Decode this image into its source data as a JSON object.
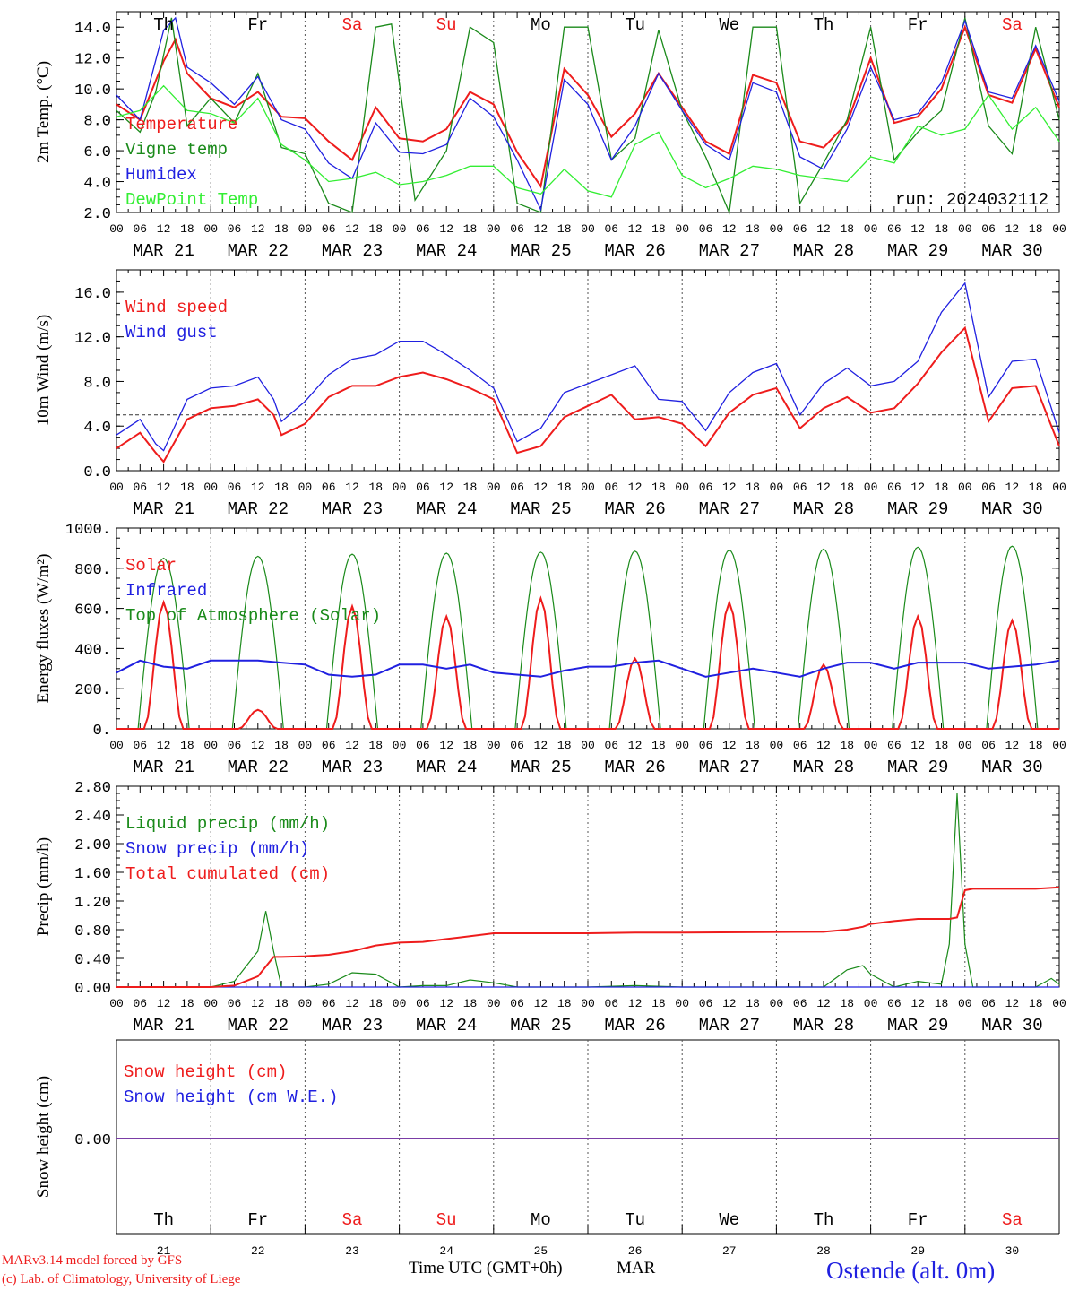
{
  "footer": {
    "credit_line1": "MARv3.14 model forced by GFS",
    "credit_line2": "(c) Lab. of Climatology, University of Liege",
    "xaxis_title": "Time UTC (GMT+0h)",
    "month": "MAR",
    "station": "Ostende (alt. 0m)"
  },
  "colors": {
    "red": "#ee1c1c",
    "green": "#1a8a1a",
    "blue": "#2020e0",
    "light_green": "#33ee33",
    "purple": "#7a3ca6",
    "black": "#000000"
  },
  "chart_data": [
    {
      "id": "temperature",
      "type": "line",
      "ylabel": "2m Temp. (°C)",
      "ylim": [
        2.0,
        15.0
      ],
      "yticks": [
        "2.0",
        "4.0",
        "6.0",
        "8.0",
        "10.0",
        "12.0",
        "14.0"
      ],
      "annotation": "run: 2024032112",
      "hour_ticks": [
        "00",
        "06",
        "12",
        "18"
      ],
      "dates": [
        "MAR 21",
        "MAR 22",
        "MAR 23",
        "MAR 24",
        "MAR 25",
        "MAR 26",
        "MAR 27",
        "MAR 28",
        "MAR 29",
        "MAR 30"
      ],
      "weekdays": [
        "Th",
        "Fr",
        "Sa",
        "Su",
        "Mo",
        "Tu",
        "We",
        "Th",
        "Fr",
        "Sa"
      ],
      "weekend": [
        false,
        false,
        true,
        true,
        false,
        false,
        false,
        false,
        false,
        true
      ],
      "x_unit": "hours after 2024-03-21 00 UTC",
      "xlim": [
        0,
        240
      ],
      "series": [
        {
          "name": "Temperature",
          "color": "red",
          "x": [
            0,
            6,
            12,
            15,
            18,
            24,
            30,
            36,
            42,
            48,
            54,
            60,
            66,
            72,
            78,
            84,
            90,
            96,
            102,
            108,
            114,
            120,
            126,
            132,
            138,
            144,
            150,
            156,
            162,
            168,
            174,
            180,
            186,
            192,
            198,
            204,
            210,
            216,
            222,
            228,
            234,
            240
          ],
          "values": [
            9.0,
            8.0,
            11.8,
            13.2,
            11.0,
            9.4,
            8.8,
            9.8,
            8.2,
            8.1,
            6.6,
            5.4,
            8.8,
            6.8,
            6.6,
            7.4,
            9.8,
            9.0,
            5.9,
            3.7,
            11.3,
            9.6,
            6.9,
            8.4,
            11.0,
            8.8,
            6.6,
            5.8,
            10.9,
            10.4,
            6.6,
            6.2,
            7.8,
            12.0,
            7.8,
            8.2,
            10.0,
            14.0,
            9.6,
            9.1,
            12.6,
            8.8
          ]
        },
        {
          "name": "Vigne temp",
          "color": "green",
          "x": [
            0,
            6,
            10,
            14,
            18,
            24,
            30,
            36,
            42,
            48,
            54,
            60,
            66,
            70,
            76,
            84,
            90,
            96,
            102,
            108,
            114,
            120,
            126,
            132,
            138,
            144,
            150,
            156,
            162,
            168,
            174,
            180,
            186,
            192,
            198,
            204,
            210,
            216,
            222,
            228,
            234,
            240
          ],
          "values": [
            8.6,
            7.2,
            9.8,
            14.6,
            7.6,
            9.4,
            7.8,
            11.0,
            6.2,
            5.8,
            2.6,
            2.0,
            14.0,
            14.2,
            2.8,
            6.0,
            14.0,
            13.0,
            2.6,
            2.0,
            14.0,
            14.0,
            5.4,
            6.8,
            13.8,
            8.6,
            5.6,
            2.0,
            14.0,
            14.0,
            2.6,
            5.2,
            8.0,
            14.0,
            5.4,
            7.2,
            8.6,
            14.6,
            7.6,
            5.8,
            14.0,
            8.0
          ]
        },
        {
          "name": "Humidex",
          "color": "blue",
          "x": [
            0,
            6,
            12,
            15,
            18,
            24,
            30,
            36,
            42,
            48,
            54,
            60,
            66,
            72,
            78,
            84,
            90,
            96,
            102,
            108,
            114,
            120,
            126,
            132,
            138,
            144,
            150,
            156,
            162,
            168,
            174,
            180,
            186,
            192,
            198,
            204,
            210,
            216,
            222,
            228,
            234,
            240
          ],
          "values": [
            9.6,
            8.0,
            13.8,
            14.6,
            11.4,
            10.4,
            9.0,
            10.8,
            8.0,
            7.4,
            5.2,
            4.2,
            7.8,
            5.9,
            5.8,
            6.4,
            9.4,
            8.2,
            5.4,
            2.2,
            10.6,
            9.0,
            5.4,
            7.6,
            11.0,
            8.6,
            6.4,
            5.4,
            10.4,
            9.8,
            5.6,
            4.8,
            7.4,
            11.4,
            8.0,
            8.4,
            10.4,
            14.4,
            9.8,
            9.4,
            12.8,
            9.2
          ]
        },
        {
          "name": "DewPoint Temp",
          "color": "light_green",
          "x": [
            0,
            6,
            12,
            18,
            24,
            30,
            36,
            42,
            48,
            54,
            60,
            66,
            72,
            78,
            84,
            90,
            96,
            102,
            108,
            114,
            120,
            126,
            132,
            138,
            144,
            150,
            156,
            162,
            168,
            174,
            180,
            186,
            192,
            198,
            204,
            210,
            216,
            222,
            228,
            234,
            240
          ],
          "values": [
            8.2,
            8.6,
            10.2,
            8.6,
            8.4,
            7.8,
            9.4,
            6.4,
            5.4,
            4.0,
            4.2,
            4.6,
            3.8,
            4.0,
            4.4,
            5.0,
            5.0,
            3.6,
            3.2,
            4.8,
            3.4,
            3.0,
            6.4,
            7.2,
            4.4,
            3.6,
            4.2,
            5.0,
            4.8,
            4.4,
            4.2,
            4.0,
            5.6,
            5.2,
            7.6,
            7.0,
            7.4,
            9.6,
            7.4,
            8.8,
            6.6
          ]
        }
      ]
    },
    {
      "id": "wind",
      "type": "line",
      "ylabel": "10m Wind (m/s)",
      "ylim": [
        0.0,
        18.0
      ],
      "yticks": [
        "0.0",
        "4.0",
        "8.0",
        "12.0",
        "16.0"
      ],
      "reference_line": 5.0,
      "hour_ticks": [
        "00",
        "06",
        "12",
        "18"
      ],
      "dates": [
        "MAR 21",
        "MAR 22",
        "MAR 23",
        "MAR 24",
        "MAR 25",
        "MAR 26",
        "MAR 27",
        "MAR 28",
        "MAR 29",
        "MAR 30"
      ],
      "x_unit": "hours after 2024-03-21 00 UTC",
      "xlim": [
        0,
        240
      ],
      "series": [
        {
          "name": "Wind speed",
          "color": "red",
          "x": [
            0,
            6,
            10,
            12,
            18,
            24,
            30,
            36,
            40,
            42,
            48,
            54,
            60,
            66,
            72,
            78,
            84,
            90,
            96,
            102,
            108,
            114,
            120,
            126,
            132,
            138,
            144,
            150,
            156,
            162,
            168,
            174,
            180,
            186,
            192,
            198,
            204,
            210,
            216,
            222,
            228,
            234,
            240
          ],
          "values": [
            2.0,
            3.4,
            1.6,
            0.8,
            4.6,
            5.6,
            5.8,
            6.4,
            5.0,
            3.2,
            4.2,
            6.6,
            7.6,
            7.6,
            8.4,
            8.8,
            8.2,
            7.4,
            6.4,
            1.6,
            2.2,
            4.8,
            5.8,
            6.8,
            4.6,
            4.8,
            4.2,
            2.2,
            5.2,
            6.8,
            7.4,
            3.8,
            5.6,
            6.6,
            5.2,
            5.6,
            7.8,
            10.6,
            12.8,
            4.4,
            7.4,
            7.6,
            2.2
          ]
        },
        {
          "name": "Wind gust",
          "color": "blue",
          "x": [
            0,
            6,
            10,
            12,
            18,
            24,
            30,
            36,
            40,
            42,
            48,
            54,
            60,
            66,
            72,
            78,
            84,
            90,
            96,
            102,
            108,
            114,
            120,
            126,
            132,
            138,
            144,
            150,
            156,
            162,
            168,
            174,
            180,
            186,
            192,
            198,
            204,
            210,
            216,
            222,
            228,
            234,
            240
          ],
          "values": [
            3.2,
            4.6,
            2.4,
            1.8,
            6.4,
            7.4,
            7.6,
            8.4,
            6.4,
            4.4,
            6.2,
            8.6,
            10.0,
            10.4,
            11.6,
            11.6,
            10.4,
            9.0,
            7.4,
            2.6,
            3.8,
            7.0,
            7.8,
            8.6,
            9.4,
            6.4,
            6.2,
            3.6,
            7.0,
            8.8,
            9.6,
            5.0,
            7.8,
            9.2,
            7.6,
            8.0,
            9.8,
            14.2,
            16.8,
            6.6,
            9.8,
            10.0,
            3.4
          ]
        }
      ]
    },
    {
      "id": "energy",
      "type": "line",
      "ylabel": "Energy fluxes (W/m²)",
      "ylim": [
        0,
        1000
      ],
      "yticks": [
        "0.",
        "200.",
        "400.",
        "600.",
        "800.",
        "1000."
      ],
      "hour_ticks": [
        "00",
        "06",
        "12",
        "18"
      ],
      "dates": [
        "MAR 21",
        "MAR 22",
        "MAR 23",
        "MAR 24",
        "MAR 25",
        "MAR 26",
        "MAR 27",
        "MAR 28",
        "MAR 29",
        "MAR 30"
      ],
      "x_unit": "hours after 2024-03-21 00 UTC",
      "xlim": [
        0,
        240
      ],
      "series": [
        {
          "name": "Solar",
          "color": "red",
          "daily_peaks": [
            630,
            95,
            610,
            560,
            650,
            350,
            630,
            320,
            560,
            540
          ]
        },
        {
          "name": "Infrared",
          "color": "blue",
          "x": [
            0,
            6,
            12,
            18,
            24,
            30,
            36,
            42,
            48,
            54,
            60,
            66,
            72,
            78,
            84,
            90,
            96,
            102,
            108,
            114,
            120,
            126,
            132,
            138,
            144,
            150,
            156,
            162,
            168,
            174,
            180,
            186,
            192,
            198,
            204,
            210,
            216,
            222,
            228,
            234,
            240
          ],
          "values": [
            280,
            340,
            310,
            300,
            340,
            340,
            340,
            330,
            320,
            270,
            260,
            270,
            320,
            320,
            300,
            320,
            280,
            270,
            260,
            290,
            310,
            310,
            330,
            340,
            300,
            260,
            280,
            300,
            280,
            260,
            300,
            330,
            330,
            300,
            330,
            330,
            330,
            300,
            310,
            320,
            340
          ]
        },
        {
          "name": "Top of Atmosphere (Solar)",
          "color": "green",
          "daily_peaks": [
            850,
            860,
            870,
            875,
            880,
            885,
            890,
            895,
            905,
            910
          ]
        }
      ]
    },
    {
      "id": "precip",
      "type": "line",
      "ylabel": "Precip (mm/h)",
      "ylim": [
        0.0,
        2.8
      ],
      "yticks": [
        "0.00",
        "0.40",
        "0.80",
        "1.20",
        "1.60",
        "2.00",
        "2.40",
        "2.80"
      ],
      "hour_ticks": [
        "00",
        "06",
        "12",
        "18"
      ],
      "dates": [
        "MAR 21",
        "MAR 22",
        "MAR 23",
        "MAR 24",
        "MAR 25",
        "MAR 26",
        "MAR 27",
        "MAR 28",
        "MAR 29",
        "MAR 30"
      ],
      "x_unit": "hours after 2024-03-21 00 UTC",
      "xlim": [
        0,
        240
      ],
      "series": [
        {
          "name": "Liquid precip (mm/h)",
          "color": "green",
          "x": [
            0,
            24,
            30,
            36,
            38,
            40,
            42,
            48,
            54,
            60,
            66,
            72,
            78,
            84,
            90,
            96,
            102,
            120,
            132,
            144,
            162,
            180,
            186,
            190,
            192,
            198,
            204,
            210,
            212,
            214,
            216,
            218,
            222,
            228,
            234,
            238,
            240
          ],
          "values": [
            0,
            0,
            0.08,
            0.5,
            1.06,
            0.5,
            0,
            0,
            0.04,
            0.2,
            0.18,
            0,
            0.02,
            0.02,
            0.1,
            0.06,
            0,
            0,
            0.02,
            0,
            0,
            0,
            0.24,
            0.3,
            0.18,
            0,
            0.08,
            0.04,
            0.6,
            2.7,
            0.6,
            0,
            0,
            0,
            0,
            0.12,
            0.04
          ]
        },
        {
          "name": "Snow precip (mm/h)",
          "color": "blue",
          "x": [
            0,
            240
          ],
          "values": [
            0,
            0
          ]
        },
        {
          "name": "Total cumulated (cm)",
          "color": "red",
          "x": [
            0,
            24,
            30,
            36,
            40,
            42,
            48,
            54,
            60,
            66,
            72,
            78,
            84,
            90,
            96,
            102,
            120,
            132,
            144,
            180,
            186,
            190,
            192,
            198,
            204,
            210,
            212,
            214,
            216,
            218,
            222,
            228,
            234,
            240
          ],
          "values": [
            0,
            0,
            0.02,
            0.15,
            0.42,
            0.42,
            0.43,
            0.45,
            0.5,
            0.58,
            0.62,
            0.63,
            0.67,
            0.71,
            0.75,
            0.75,
            0.75,
            0.76,
            0.76,
            0.77,
            0.8,
            0.84,
            0.88,
            0.92,
            0.95,
            0.95,
            0.95,
            0.97,
            1.35,
            1.37,
            1.37,
            1.37,
            1.37,
            1.39
          ]
        }
      ]
    },
    {
      "id": "snow",
      "type": "line",
      "ylabel": "Snow height (cm)",
      "yticks": [
        "0.00"
      ],
      "day_numbers": [
        "21",
        "22",
        "23",
        "24",
        "25",
        "26",
        "27",
        "28",
        "29",
        "30"
      ],
      "weekdays": [
        "Th",
        "Fr",
        "Sa",
        "Su",
        "Mo",
        "Tu",
        "We",
        "Th",
        "Fr",
        "Sa"
      ],
      "weekend": [
        false,
        false,
        true,
        true,
        false,
        false,
        false,
        false,
        false,
        true
      ],
      "x_unit": "hours after 2024-03-21 00 UTC",
      "xlim": [
        0,
        240
      ],
      "series": [
        {
          "name": "Snow height (cm)",
          "color": "red",
          "x": [
            0,
            240
          ],
          "values": [
            0,
            0
          ]
        },
        {
          "name": "Snow height (cm W.E.)",
          "color": "blue",
          "x": [
            0,
            240
          ],
          "values": [
            0,
            0
          ]
        }
      ]
    }
  ]
}
